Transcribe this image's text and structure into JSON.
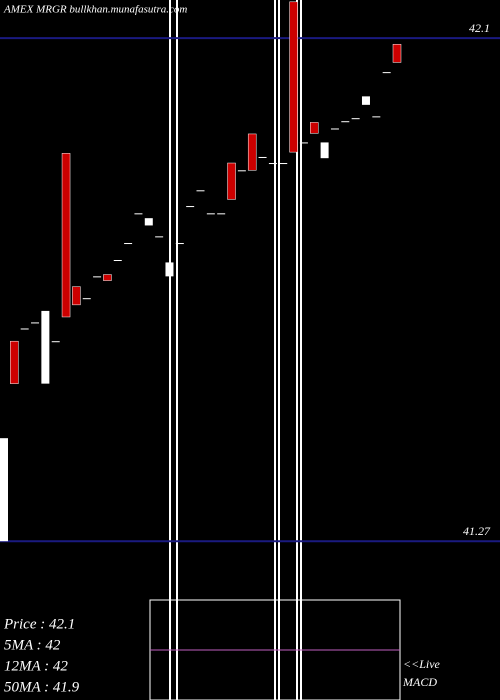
{
  "chart_data": {
    "type": "candlestick",
    "title": "AMEX  MRGR bullkhan.munafasutra.com",
    "up_color": "#ffffff",
    "down_color": "#cc0000",
    "ylim": [
      41.008,
      42.163
    ],
    "yticks": [
      41.27,
      42.1
    ],
    "open": [
      41.27,
      41.6,
      41.621,
      41.631,
      41.53,
      41.6,
      41.91,
      41.69,
      41.671,
      41.707,
      41.71,
      41.734,
      41.762,
      41.811,
      41.791,
      41.773,
      41.707,
      41.762,
      41.823,
      41.849,
      41.811,
      41.811,
      41.894,
      41.882,
      41.942,
      41.904,
      41.894,
      41.894,
      42.16,
      41.928,
      41.961,
      41.902,
      41.951,
      41.963,
      41.968,
      41.99,
      41.971,
      42.044,
      42.09
    ],
    "close": [
      41.44,
      41.53,
      41.621,
      41.631,
      41.65,
      41.6,
      41.64,
      41.66,
      41.671,
      41.707,
      41.7,
      41.734,
      41.762,
      41.811,
      41.803,
      41.773,
      41.73,
      41.762,
      41.823,
      41.849,
      41.811,
      41.811,
      41.834,
      41.882,
      41.882,
      41.904,
      41.894,
      41.894,
      41.912,
      41.928,
      41.943,
      41.928,
      41.951,
      41.963,
      41.968,
      42.004,
      41.971,
      42.044,
      42.06
    ],
    "info_lines": [
      "Price   : 42.1",
      "5MA : 42",
      "12MA : 42",
      "50MA : 41.9"
    ],
    "macd_label": [
      "<<Live",
      "MACD"
    ]
  }
}
